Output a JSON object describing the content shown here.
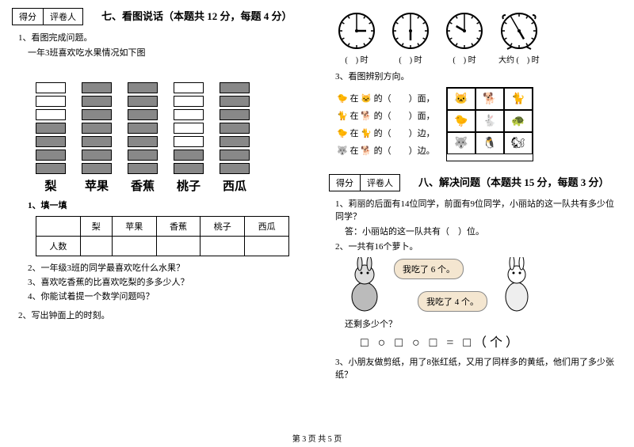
{
  "left": {
    "score_label1": "得分",
    "score_label2": "评卷人",
    "section7_title": "七、看图说话（本题共 12 分，每题 4 分）",
    "q1": "1、看图完成问题。",
    "q1a": "一年3班喜欢吃水果情况如下图",
    "chart": {
      "columns": [
        {
          "label": "梨",
          "total": 7,
          "filled": 4
        },
        {
          "label": "苹果",
          "total": 7,
          "filled": 7
        },
        {
          "label": "香蕉",
          "total": 7,
          "filled": 7
        },
        {
          "label": "桃子",
          "total": 7,
          "filled": 2
        },
        {
          "label": "西瓜",
          "total": 7,
          "filled": 7
        }
      ]
    },
    "fill_title": "1、填一填",
    "table_headers": [
      "",
      "梨",
      "苹果",
      "香蕉",
      "桃子",
      "西瓜"
    ],
    "table_row": "人数",
    "q_s2": "2、一年级3班的同学最喜欢吃什么水果？",
    "q_s3": "3、喜欢吃香蕉的比喜欢吃梨的多多少人？",
    "q_s4": "4、你能试着提一个数学问题吗？",
    "q2": "2、写出钟面上的时刻。"
  },
  "right": {
    "clocks": [
      {
        "label": "(　) 时",
        "h": 3,
        "m": 0
      },
      {
        "label": "(　) 时",
        "h": 6,
        "m": 0
      },
      {
        "label": "(　) 时",
        "h": 10,
        "m": 0
      },
      {
        "label": "大约 (　) 时",
        "h": 5,
        "m": 55,
        "alarm": true
      }
    ],
    "q3": "3、看图辨别方向。",
    "dir_lines": [
      "🐤 在 🐱 的（　　）面，",
      "🐈 在 🐕 的（　　）面，",
      "🐤 在 🐈 的（　　）边，",
      "🐺 在 🐕 的（　　）边。"
    ],
    "score_label1": "得分",
    "score_label2": "评卷人",
    "section8_title": "八、解决问题（本题共 15 分，每题 3 分）",
    "q8_1": "1、莉丽的后面有14位同学，前面有9位同学，小丽站的这一队共有多少位同学？",
    "q8_1a": "答：小丽站的这一队共有（　）位。",
    "q8_2": "2、一共有16个萝卜。",
    "bubble1": "我吃了 6 个。",
    "bubble2": "我吃了 4 个。",
    "q8_2a": "还剩多少个？",
    "shapes_eq": "□ ○ □ ○ □ = □（个）",
    "q8_3": "3、小朋友做剪纸，用了8张红纸，又用了同样多的黄纸，他们用了多少张纸？"
  },
  "footer": "第 3 页 共 5 页"
}
